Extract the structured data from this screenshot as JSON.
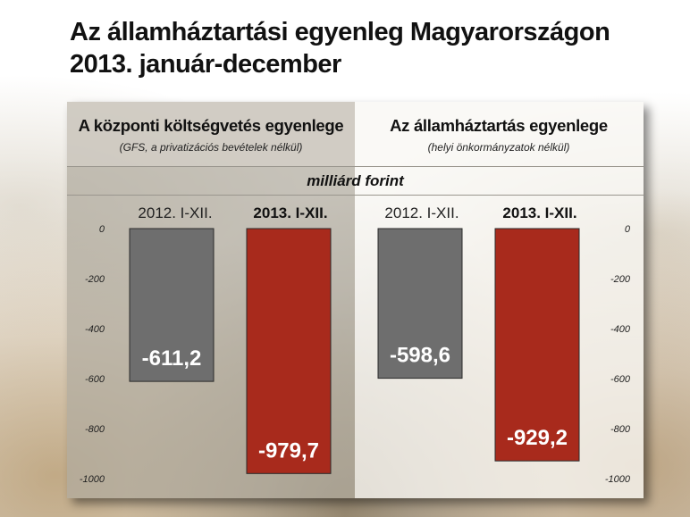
{
  "title": {
    "line1": "Az államháztartási egyenleg Magyarországon",
    "line2": "2013. január-december"
  },
  "panels": [
    {
      "title": "A központi költségvetés egyenlege",
      "subtitle": "(GFS, a privatizációs bevételek nélkül)"
    },
    {
      "title": "Az államháztartás egyenlege",
      "subtitle": "(helyi önkormányzatok nélkül)"
    }
  ],
  "unit": "milliárd forint",
  "column_headers": [
    "2012. I-XII.",
    "2013. I-XII.",
    "2012. I-XII.",
    "2013. I-XII."
  ],
  "colors": {
    "gray_bar": "#6e6e6e",
    "red_bar": "#a82a1c",
    "bar_label": "#ffffff"
  },
  "chart_data": [
    {
      "type": "bar",
      "title": "A központi költségvetés egyenlege",
      "categories": [
        "2012. I-XII.",
        "2013. I-XII."
      ],
      "values": [
        -611.2,
        -979.7
      ],
      "labels": [
        "-611,2",
        "-979,7"
      ],
      "ylim": [
        -1000,
        0
      ],
      "yticks": [
        0,
        -200,
        -400,
        -600,
        -800,
        -1000
      ],
      "ytick_labels": [
        "0",
        "-200",
        "-400",
        "-600",
        "-800",
        "-1000"
      ],
      "axis_side": "left"
    },
    {
      "type": "bar",
      "title": "Az államháztartás egyenlege",
      "categories": [
        "2012. I-XII.",
        "2013. I-XII."
      ],
      "values": [
        -598.6,
        -929.2
      ],
      "labels": [
        "-598,6",
        "-929,2"
      ],
      "ylim": [
        -1000,
        0
      ],
      "yticks": [
        0,
        -200,
        -400,
        -600,
        -800,
        -1000
      ],
      "ytick_labels": [
        "0",
        "-200",
        "-400",
        "-600",
        "-800",
        "-1000"
      ],
      "axis_side": "right"
    }
  ]
}
